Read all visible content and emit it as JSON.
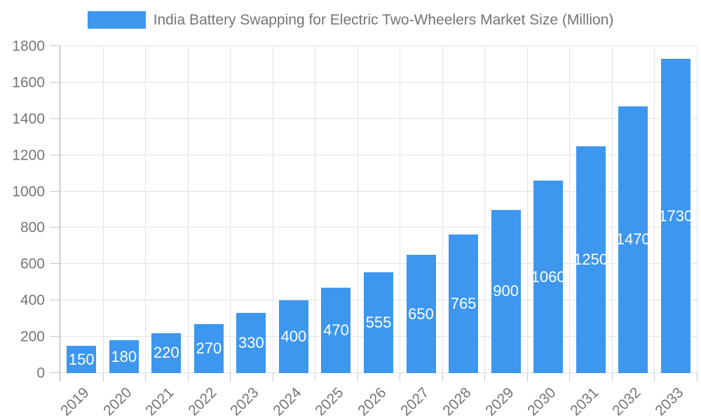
{
  "legend": {
    "label": "India Battery Swapping for Electric Two-Wheelers Market Size (Million)"
  },
  "chart_data": {
    "type": "bar",
    "title": "India Battery Swapping for Electric Two-Wheelers Market Size (Million)",
    "categories": [
      "2019",
      "2020",
      "2021",
      "2022",
      "2023",
      "2024",
      "2025",
      "2026",
      "2027",
      "2028",
      "2029",
      "2030",
      "2031",
      "2032",
      "2033"
    ],
    "values": [
      150,
      180,
      220,
      270,
      330,
      400,
      470,
      555,
      650,
      765,
      900,
      1060,
      1250,
      1470,
      1730
    ],
    "value_labels_shown": true,
    "xlabel": "",
    "ylabel": "",
    "ylim": [
      0,
      1800
    ],
    "y_ticks": [
      0,
      200,
      400,
      600,
      800,
      1000,
      1200,
      1400,
      1600,
      1800
    ],
    "grid": "horizontal and vertical light gray gridlines",
    "legend_position": "top-center",
    "x_tick_rotation_deg": -45,
    "colors": {
      "bar": "#3D97EE",
      "value_label": "#FFFFFF",
      "axis_text": "#757575",
      "grid_line": "#E2E2E2",
      "axis_line": "#A6A6A6",
      "tick_line": "#C9C9C9",
      "background": "#FFFFFF"
    }
  }
}
